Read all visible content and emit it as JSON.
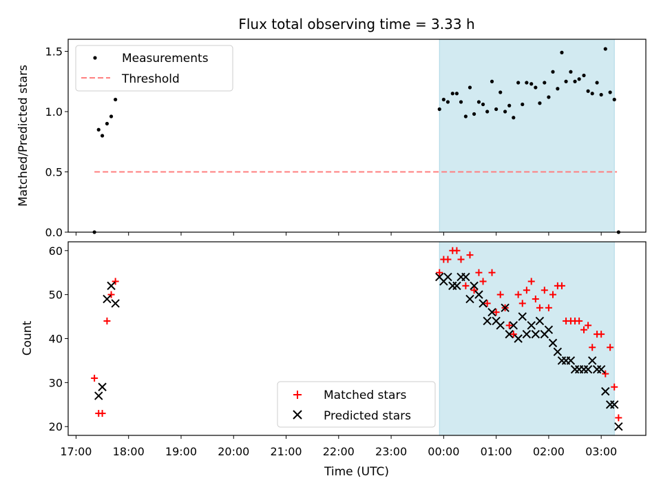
{
  "chart_data": {
    "type": "scatter",
    "title": "Flux total observing time = 3.33 h",
    "xlabel": "Time (UTC)",
    "x_unit": "hours since 17:00 UTC",
    "xlim": [
      -0.15,
      10.85
    ],
    "x_ticks": [
      0,
      1,
      2,
      3,
      4,
      5,
      6,
      7,
      8,
      9,
      10
    ],
    "x_tick_labels": [
      "17:00",
      "18:00",
      "19:00",
      "20:00",
      "21:00",
      "22:00",
      "23:00",
      "00:00",
      "01:00",
      "02:00",
      "03:00"
    ],
    "shaded_interval": [
      6.92,
      10.25
    ],
    "colors": {
      "measurement": "#000000",
      "threshold": "#ff7f7f",
      "matched": "#ff0000",
      "predicted": "#000000",
      "shade": "#add8e6"
    },
    "panels": [
      {
        "name": "ratio",
        "ylabel": "Matched/Predicted stars",
        "ylim": [
          0,
          1.6
        ],
        "y_ticks": [
          0.0,
          0.5,
          1.0,
          1.5
        ],
        "y_tick_labels": [
          "0.0",
          "0.5",
          "1.0",
          "1.5"
        ],
        "legend": [
          "Measurements",
          "Threshold"
        ],
        "threshold": {
          "name": "Threshold",
          "y": 0.5,
          "x_range": [
            0.35,
            10.3
          ]
        },
        "series": [
          {
            "name": "Measurements",
            "x": [
              0.35,
              0.43,
              0.5,
              0.59,
              0.67,
              0.75,
              6.92,
              7.0,
              7.08,
              7.17,
              7.25,
              7.33,
              7.42,
              7.5,
              7.58,
              7.67,
              7.75,
              7.83,
              7.92,
              8.0,
              8.08,
              8.17,
              8.25,
              8.33,
              8.42,
              8.5,
              8.58,
              8.67,
              8.75,
              8.83,
              8.92,
              9.0,
              9.08,
              9.17,
              9.25,
              9.33,
              9.42,
              9.5,
              9.58,
              9.67,
              9.75,
              9.83,
              9.92,
              10.0,
              10.08,
              10.17,
              10.25,
              10.33
            ],
            "y": [
              0.0,
              0.85,
              0.8,
              0.9,
              0.96,
              1.1,
              1.02,
              1.1,
              1.08,
              1.15,
              1.15,
              1.08,
              0.96,
              1.2,
              0.98,
              1.08,
              1.06,
              1.0,
              1.25,
              1.02,
              1.16,
              1.0,
              1.05,
              0.95,
              1.24,
              1.06,
              1.24,
              1.23,
              1.2,
              1.07,
              1.24,
              1.12,
              1.33,
              1.19,
              1.49,
              1.25,
              1.33,
              1.25,
              1.27,
              1.3,
              1.17,
              1.15,
              1.24,
              1.14,
              1.52,
              1.16,
              1.1,
              0.0
            ]
          }
        ]
      },
      {
        "name": "counts",
        "ylabel": "Count",
        "ylim": [
          18,
          62
        ],
        "y_ticks": [
          20,
          30,
          40,
          50,
          60
        ],
        "y_tick_labels": [
          "20",
          "30",
          "40",
          "50",
          "60"
        ],
        "legend": [
          "Matched stars",
          "Predicted stars"
        ],
        "series": [
          {
            "name": "Matched stars",
            "marker": "plus",
            "x": [
              0.35,
              0.43,
              0.5,
              0.59,
              0.67,
              0.75,
              6.92,
              7.0,
              7.08,
              7.17,
              7.25,
              7.33,
              7.42,
              7.5,
              7.58,
              7.67,
              7.75,
              7.83,
              7.92,
              8.0,
              8.08,
              8.17,
              8.25,
              8.33,
              8.42,
              8.5,
              8.58,
              8.67,
              8.75,
              8.83,
              8.92,
              9.0,
              9.08,
              9.17,
              9.25,
              9.33,
              9.42,
              9.5,
              9.58,
              9.67,
              9.75,
              9.83,
              9.92,
              10.0,
              10.08,
              10.17,
              10.25,
              10.33
            ],
            "y": [
              31,
              23,
              23,
              44,
              50,
              53,
              55,
              58,
              58,
              60,
              60,
              58,
              52,
              59,
              51,
              55,
              53,
              48,
              55,
              46,
              50,
              47,
              43,
              41,
              50,
              48,
              51,
              53,
              49,
              47,
              51,
              47,
              50,
              52,
              52,
              44,
              44,
              44,
              44,
              42,
              43,
              38,
              41,
              41,
              32,
              38,
              29,
              22
            ]
          },
          {
            "name": "Predicted stars",
            "marker": "x",
            "x": [
              0.43,
              0.5,
              0.59,
              0.67,
              0.75,
              6.92,
              7.0,
              7.08,
              7.17,
              7.25,
              7.33,
              7.42,
              7.5,
              7.58,
              7.67,
              7.75,
              7.83,
              7.92,
              8.0,
              8.08,
              8.17,
              8.25,
              8.33,
              8.42,
              8.5,
              8.58,
              8.67,
              8.75,
              8.83,
              8.92,
              9.0,
              9.08,
              9.17,
              9.25,
              9.33,
              9.42,
              9.5,
              9.58,
              9.67,
              9.75,
              9.83,
              9.92,
              10.0,
              10.08,
              10.17,
              10.25,
              10.33
            ],
            "y": [
              27,
              29,
              49,
              52,
              48,
              54,
              53,
              54,
              52,
              52,
              54,
              54,
              49,
              52,
              50,
              48,
              44,
              46,
              44,
              43,
              47,
              41,
              43,
              40,
              45,
              41,
              43,
              41,
              44,
              41,
              42,
              39,
              37,
              35,
              35,
              35,
              33,
              33,
              33,
              33,
              35,
              33,
              33,
              28,
              25,
              25,
              20
            ]
          }
        ]
      }
    ]
  }
}
